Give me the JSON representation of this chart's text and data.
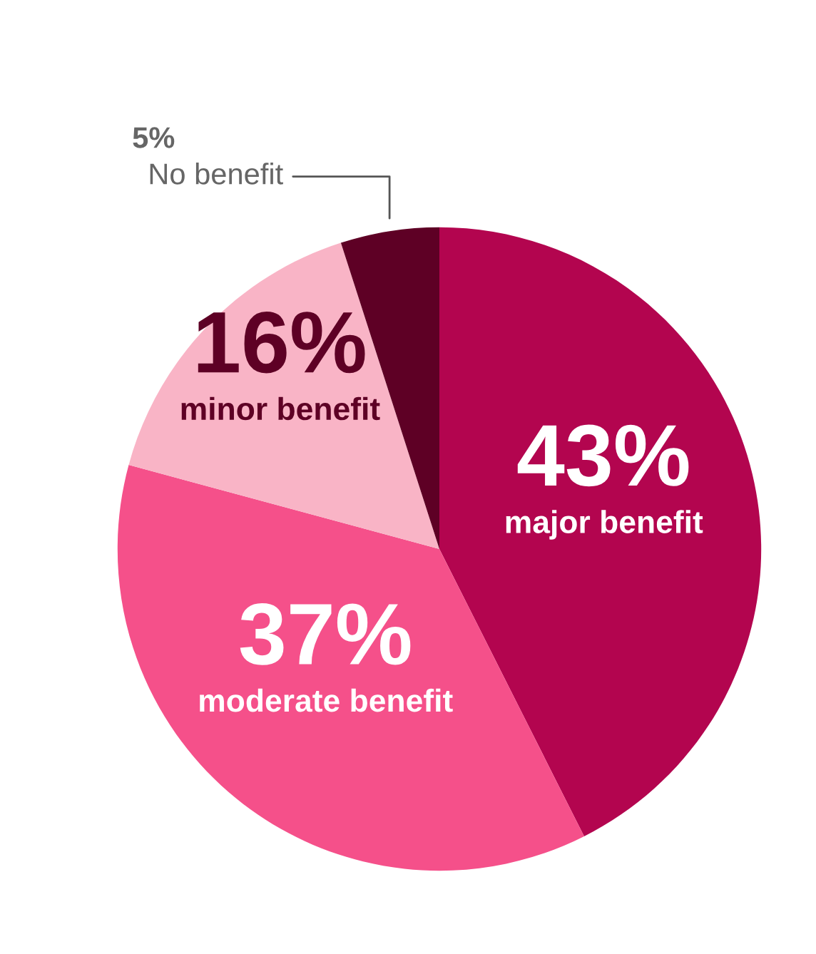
{
  "chart_data": {
    "type": "pie",
    "categories": [
      "major benefit",
      "moderate benefit",
      "minor benefit",
      "No benefit"
    ],
    "values": [
      43,
      37,
      16,
      5
    ],
    "value_labels": [
      "43%",
      "37%",
      "16%",
      "5%"
    ],
    "colors": [
      "#b3054f",
      "#f5508a",
      "#f9b4c6",
      "#5e0025"
    ]
  }
}
